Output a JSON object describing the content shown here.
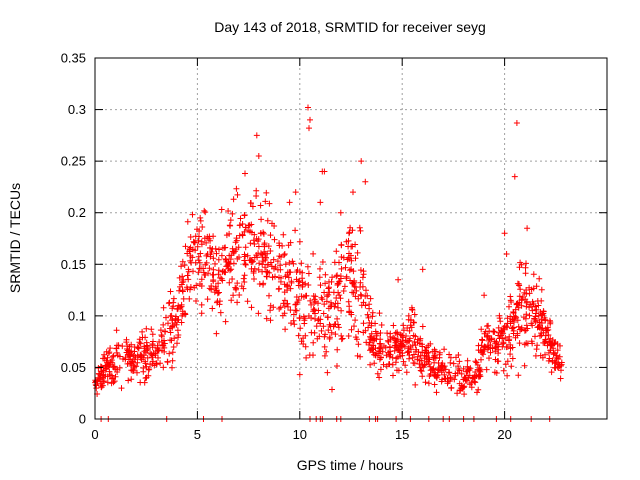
{
  "chart_data": {
    "type": "scatter",
    "title": "Day 143 of 2018, SRMTID for receiver seyg",
    "xlabel": "GPS time / hours",
    "ylabel": "SRMTID / TECUs",
    "xlim": [
      0,
      25
    ],
    "ylim": [
      0,
      0.35
    ],
    "xticks": [
      0,
      5,
      10,
      15,
      20
    ],
    "xtick_labels": [
      "0",
      "5",
      "10",
      "15",
      "20"
    ],
    "yticks": [
      0,
      0.05,
      0.1,
      0.15,
      0.2,
      0.25,
      0.3,
      0.35
    ],
    "ytick_labels": [
      "0",
      "0.05",
      "0.1",
      "0.15",
      "0.2",
      "0.25",
      "0.3",
      "0.35"
    ],
    "grid": true,
    "marker": "plus",
    "color": "#ff0000",
    "series": [
      {
        "name": "SRMTID",
        "envelope": {
          "x": [
            0.0,
            0.5,
            1.0,
            1.5,
            2.0,
            2.5,
            3.0,
            3.5,
            4.0,
            4.5,
            5.0,
            5.5,
            6.0,
            6.5,
            7.0,
            7.5,
            8.0,
            8.5,
            9.0,
            9.5,
            10.0,
            10.5,
            11.0,
            11.5,
            12.0,
            12.5,
            13.0,
            13.5,
            14.0,
            14.5,
            15.0,
            15.5,
            16.0,
            16.5,
            17.0,
            17.5,
            18.0,
            18.5,
            19.0,
            19.5,
            20.0,
            20.5,
            21.0,
            21.5,
            22.0,
            22.5,
            22.8
          ],
          "center": [
            0.035,
            0.045,
            0.055,
            0.06,
            0.06,
            0.06,
            0.065,
            0.08,
            0.1,
            0.14,
            0.16,
            0.15,
            0.14,
            0.15,
            0.16,
            0.17,
            0.16,
            0.15,
            0.14,
            0.13,
            0.12,
            0.11,
            0.1,
            0.1,
            0.12,
            0.14,
            0.12,
            0.08,
            0.07,
            0.07,
            0.07,
            0.08,
            0.06,
            0.05,
            0.05,
            0.045,
            0.04,
            0.04,
            0.07,
            0.07,
            0.08,
            0.1,
            0.11,
            0.1,
            0.08,
            0.06,
            0.05
          ],
          "spread": [
            0.01,
            0.015,
            0.02,
            0.02,
            0.02,
            0.02,
            0.02,
            0.03,
            0.03,
            0.04,
            0.04,
            0.04,
            0.04,
            0.05,
            0.05,
            0.05,
            0.05,
            0.05,
            0.05,
            0.05,
            0.05,
            0.05,
            0.05,
            0.05,
            0.05,
            0.05,
            0.05,
            0.03,
            0.02,
            0.02,
            0.02,
            0.03,
            0.02,
            0.015,
            0.015,
            0.015,
            0.015,
            0.015,
            0.02,
            0.02,
            0.03,
            0.04,
            0.04,
            0.03,
            0.03,
            0.015,
            0.012
          ]
        },
        "outliers": [
          [
            7.9,
            0.275
          ],
          [
            8.0,
            0.255
          ],
          [
            10.4,
            0.302
          ],
          [
            10.5,
            0.29
          ],
          [
            10.45,
            0.282
          ],
          [
            11.1,
            0.24
          ],
          [
            11.2,
            0.24
          ],
          [
            13.0,
            0.25
          ],
          [
            12.6,
            0.22
          ],
          [
            13.2,
            0.23
          ],
          [
            20.6,
            0.287
          ],
          [
            20.5,
            0.235
          ],
          [
            20.0,
            0.18
          ],
          [
            20.1,
            0.16
          ],
          [
            21.1,
            0.185
          ],
          [
            10.0,
            0.043
          ],
          [
            9.5,
            0.21
          ],
          [
            9.8,
            0.22
          ],
          [
            11.0,
            0.21
          ],
          [
            12.0,
            0.2
          ],
          [
            12.4,
            0.18
          ],
          [
            14.8,
            0.135
          ],
          [
            16.0,
            0.145
          ],
          [
            19.0,
            0.12
          ]
        ],
        "zero_points": [
          0.3,
          0.65,
          3.5,
          5.3,
          6.2,
          10.5,
          10.8,
          11.0,
          11.1,
          11.8,
          12.0,
          13.4,
          13.7,
          13.8,
          14.7,
          15.4,
          16.3,
          17.0,
          17.3,
          18.0,
          18.5,
          19.6,
          20.3,
          21.3,
          22.2
        ]
      }
    ]
  }
}
